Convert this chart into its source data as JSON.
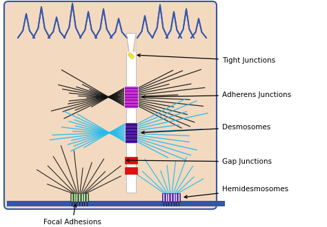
{
  "bg_color": "#f2d9c0",
  "cell_outline": "#3355aa",
  "basement_color": "#3355aa",
  "adherens_color": "#cc33cc",
  "desmosome_color": "#5522aa",
  "gap_junction_red": "#dd1111",
  "hemi_left_color": "#336622",
  "hemi_right_color": "#5522aa",
  "actin_color": "#111111",
  "intermediate_color": "#22bbee",
  "white": "#ffffff",
  "figsize": [
    4.74,
    3.3
  ],
  "dpi": 100,
  "labels": [
    "Tight Junctions",
    "Adherens Junctions",
    "Desmosomes",
    "Gap Junctions",
    "Hemidesmosomes",
    "Focal Adhesions"
  ]
}
